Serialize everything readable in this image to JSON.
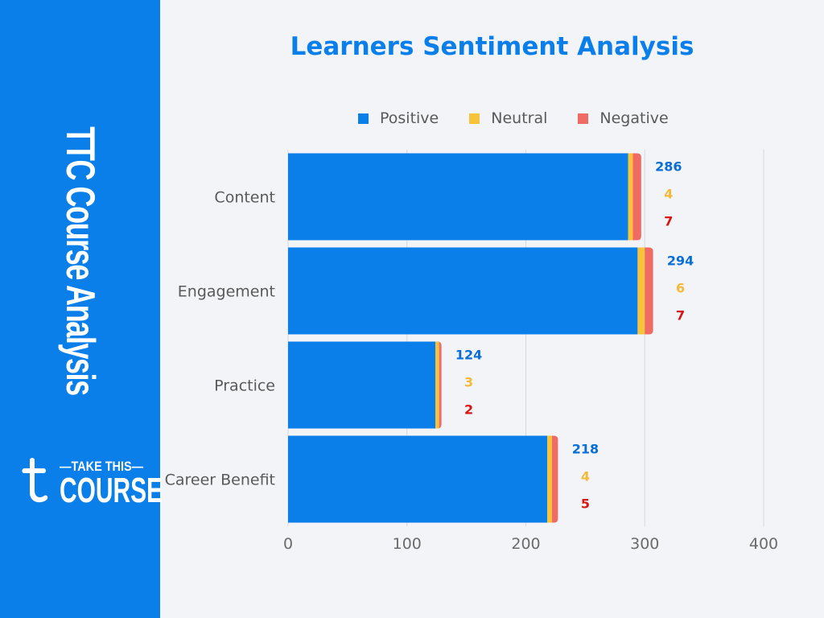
{
  "sidebar": {
    "title": "TTC Course Analysis",
    "logo": {
      "line1": "—TAKE THIS—",
      "line2": "COURSE"
    }
  },
  "colors": {
    "sidebar": "#0a7fea",
    "positive": "#0a7fea",
    "neutral": "#f7c33b",
    "negative": "#ef6b63",
    "positive_label": "#0a6fd4",
    "neutral_label": "#f5b93a",
    "negative_label": "#d81414"
  },
  "chart_data": {
    "type": "bar",
    "orientation": "horizontal",
    "stacked": true,
    "title": "Learners Sentiment Analysis",
    "categories": [
      "Content",
      "Engagement",
      "Practice",
      "Career Benefit"
    ],
    "series": [
      {
        "name": "Positive",
        "values": [
          286,
          294,
          124,
          218
        ]
      },
      {
        "name": "Neutral",
        "values": [
          4,
          6,
          3,
          4
        ]
      },
      {
        "name": "Negative",
        "values": [
          7,
          7,
          2,
          5
        ]
      }
    ],
    "xlim": [
      0,
      400
    ],
    "xticks": [
      "0",
      "100",
      "200",
      "300",
      "400"
    ],
    "grid": true,
    "legend": "top"
  }
}
